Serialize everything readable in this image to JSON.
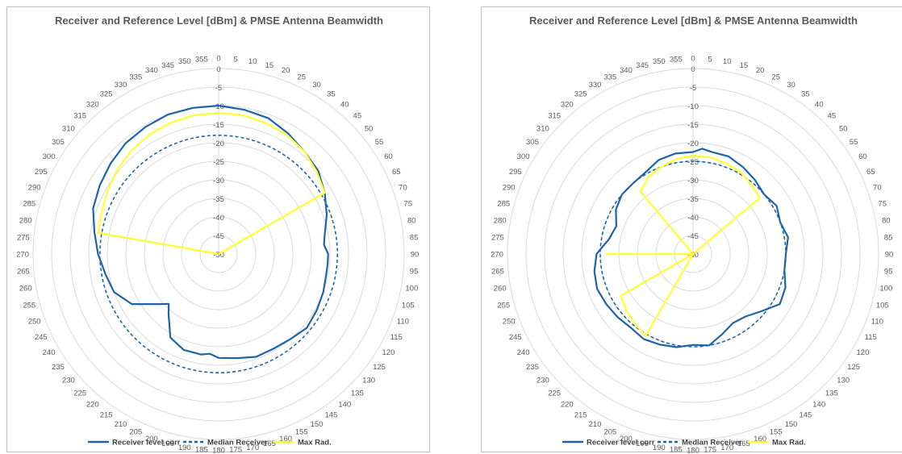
{
  "chart_data": [
    {
      "type": "radar",
      "title": "Receiver and Reference Level [dBm] & PMSE Antenna Beamwidth",
      "angle_unit": "deg",
      "angle_ticks": [
        0,
        5,
        10,
        15,
        20,
        25,
        30,
        35,
        40,
        45,
        50,
        55,
        60,
        65,
        70,
        75,
        80,
        85,
        90,
        95,
        100,
        105,
        110,
        115,
        120,
        125,
        130,
        135,
        140,
        145,
        150,
        155,
        160,
        165,
        170,
        175,
        180,
        185,
        190,
        195,
        200,
        205,
        210,
        215,
        220,
        225,
        230,
        235,
        240,
        245,
        250,
        255,
        260,
        265,
        270,
        275,
        280,
        285,
        290,
        295,
        300,
        305,
        310,
        315,
        320,
        325,
        330,
        335,
        340,
        345,
        350,
        355
      ],
      "radial_ticks": [
        0,
        -5,
        -10,
        -15,
        -20,
        -25,
        -30,
        -35,
        -40,
        -45,
        -50
      ],
      "rlim": [
        -50,
        0
      ],
      "legend_position": "bottom",
      "series": [
        {
          "name": "Receiver level corr",
          "color": "#1f63a8",
          "style": "solid",
          "angles": [
            0,
            10,
            20,
            30,
            40,
            50,
            60,
            70,
            80,
            85,
            90,
            95,
            100,
            110,
            120,
            130,
            140,
            150,
            160,
            170,
            180,
            185,
            190,
            200,
            210,
            220,
            225,
            230,
            240,
            250,
            260,
            270,
            280,
            290,
            300,
            310,
            320,
            330,
            340,
            350
          ],
          "values": [
            -10,
            -10.5,
            -11,
            -12.5,
            -14,
            -15,
            -17,
            -19,
            -21,
            -21.5,
            -20.5,
            -20.5,
            -20.5,
            -20,
            -19.5,
            -19,
            -20,
            -20.5,
            -20.5,
            -21.5,
            -22,
            -23,
            -22.5,
            -22.5,
            -24,
            -29,
            -31,
            -29,
            -23,
            -20,
            -19,
            -17.5,
            -16,
            -14,
            -13,
            -12,
            -11,
            -10.5,
            -10,
            -10
          ]
        },
        {
          "name": "Median Receiver",
          "color": "#1f63a8",
          "style": "dashed",
          "angles": [
            0,
            30,
            60,
            90,
            120,
            150,
            180,
            210,
            240,
            270,
            300,
            330
          ],
          "values": [
            -18,
            -18,
            -18,
            -18,
            -18,
            -18,
            -18,
            -18,
            -18,
            -18,
            -18,
            -18
          ]
        },
        {
          "name": "Max Rad.",
          "color": "#ffff33",
          "style": "solid",
          "angles": [
            0,
            10,
            20,
            30,
            40,
            50,
            60,
            70,
            80,
            90,
            180,
            280,
            290,
            300,
            310,
            320,
            330,
            340,
            350
          ],
          "values": [
            -50,
            -50,
            -50,
            -50,
            -50,
            -50,
            -50,
            -50,
            -50,
            -50,
            -50,
            -50,
            -17.5,
            -16.5,
            -15.5,
            -14,
            -13,
            -12,
            -11.5
          ],
          "polygon": [
            [
              0,
              -12
            ],
            [
              10,
              -12
            ],
            [
              20,
              -12.5
            ],
            [
              30,
              -13
            ],
            [
              40,
              -14
            ],
            [
              50,
              -15.5
            ],
            [
              60,
              -17
            ],
            [
              65,
              -50
            ],
            [
              280,
              -17
            ],
            [
              290,
              -16.5
            ],
            [
              300,
              -15.5
            ],
            [
              310,
              -14.5
            ],
            [
              320,
              -13.5
            ],
            [
              330,
              -12.8
            ],
            [
              340,
              -12.3
            ],
            [
              350,
              -12
            ]
          ]
        }
      ]
    },
    {
      "type": "radar",
      "title": "Receiver and Reference Level [dBm] & PMSE Antenna Beamwidth",
      "angle_unit": "deg",
      "angle_ticks": [
        0,
        5,
        10,
        15,
        20,
        25,
        30,
        35,
        40,
        45,
        50,
        55,
        60,
        65,
        70,
        75,
        80,
        85,
        90,
        95,
        100,
        105,
        110,
        115,
        120,
        125,
        130,
        135,
        140,
        145,
        150,
        155,
        160,
        165,
        170,
        175,
        180,
        185,
        190,
        195,
        200,
        205,
        210,
        215,
        220,
        225,
        230,
        235,
        240,
        245,
        250,
        255,
        260,
        265,
        270,
        275,
        280,
        285,
        290,
        295,
        300,
        305,
        310,
        315,
        320,
        325,
        330,
        335,
        340,
        345,
        350,
        355
      ],
      "radial_ticks": [
        0,
        -5,
        -10,
        -15,
        -20,
        -25,
        -30,
        -35,
        -40,
        -45,
        -50
      ],
      "rlim": [
        -50,
        0
      ],
      "legend_position": "bottom",
      "series": [
        {
          "name": "Receiver level corr",
          "color": "#1f63a8",
          "style": "solid",
          "angles": [
            0,
            5,
            10,
            20,
            30,
            40,
            50,
            60,
            70,
            80,
            90,
            100,
            110,
            120,
            130,
            140,
            150,
            160,
            170,
            180,
            190,
            200,
            210,
            220,
            230,
            240,
            250,
            260,
            270,
            280,
            290,
            300,
            310,
            320,
            330,
            340,
            350
          ],
          "values": [
            -22.5,
            -21.5,
            -22,
            -22,
            -23,
            -24,
            -25,
            -24,
            -25,
            -24,
            -25,
            -25,
            -23.5,
            -23,
            -26,
            -28,
            -28.5,
            -27,
            -25,
            -25.5,
            -24.5,
            -24,
            -23.5,
            -24,
            -23.5,
            -23,
            -22.5,
            -23,
            -24,
            -27,
            -28,
            -26,
            -25,
            -25,
            -24.5,
            -23,
            -22.5
          ]
        },
        {
          "name": "Median Receiver",
          "color": "#1f63a8",
          "style": "dashed",
          "angles": [
            0,
            30,
            60,
            90,
            120,
            150,
            180,
            210,
            240,
            270,
            300,
            330
          ],
          "values": [
            -25,
            -25,
            -25,
            -25,
            -25,
            -25,
            -25,
            -25,
            -25,
            -25,
            -25,
            -25
          ]
        },
        {
          "name": "Max Rad.",
          "color": "#ffff33",
          "style": "solid",
          "polygon": [
            [
              0,
              -23.5
            ],
            [
              10,
              -23.5
            ],
            [
              20,
              -24
            ],
            [
              30,
              -24.5
            ],
            [
              40,
              -25.5
            ],
            [
              50,
              -26.5
            ],
            [
              55,
              -50
            ],
            [
              210,
              -24.5
            ],
            [
              220,
              -25.5
            ],
            [
              230,
              -26.5
            ],
            [
              240,
              -27.5
            ],
            [
              245,
              -50
            ],
            [
              270,
              -26.5
            ],
            [
              270,
              -50
            ],
            [
              320,
              -28
            ],
            [
              330,
              -26
            ],
            [
              340,
              -25
            ],
            [
              350,
              -24
            ]
          ]
        }
      ]
    }
  ]
}
